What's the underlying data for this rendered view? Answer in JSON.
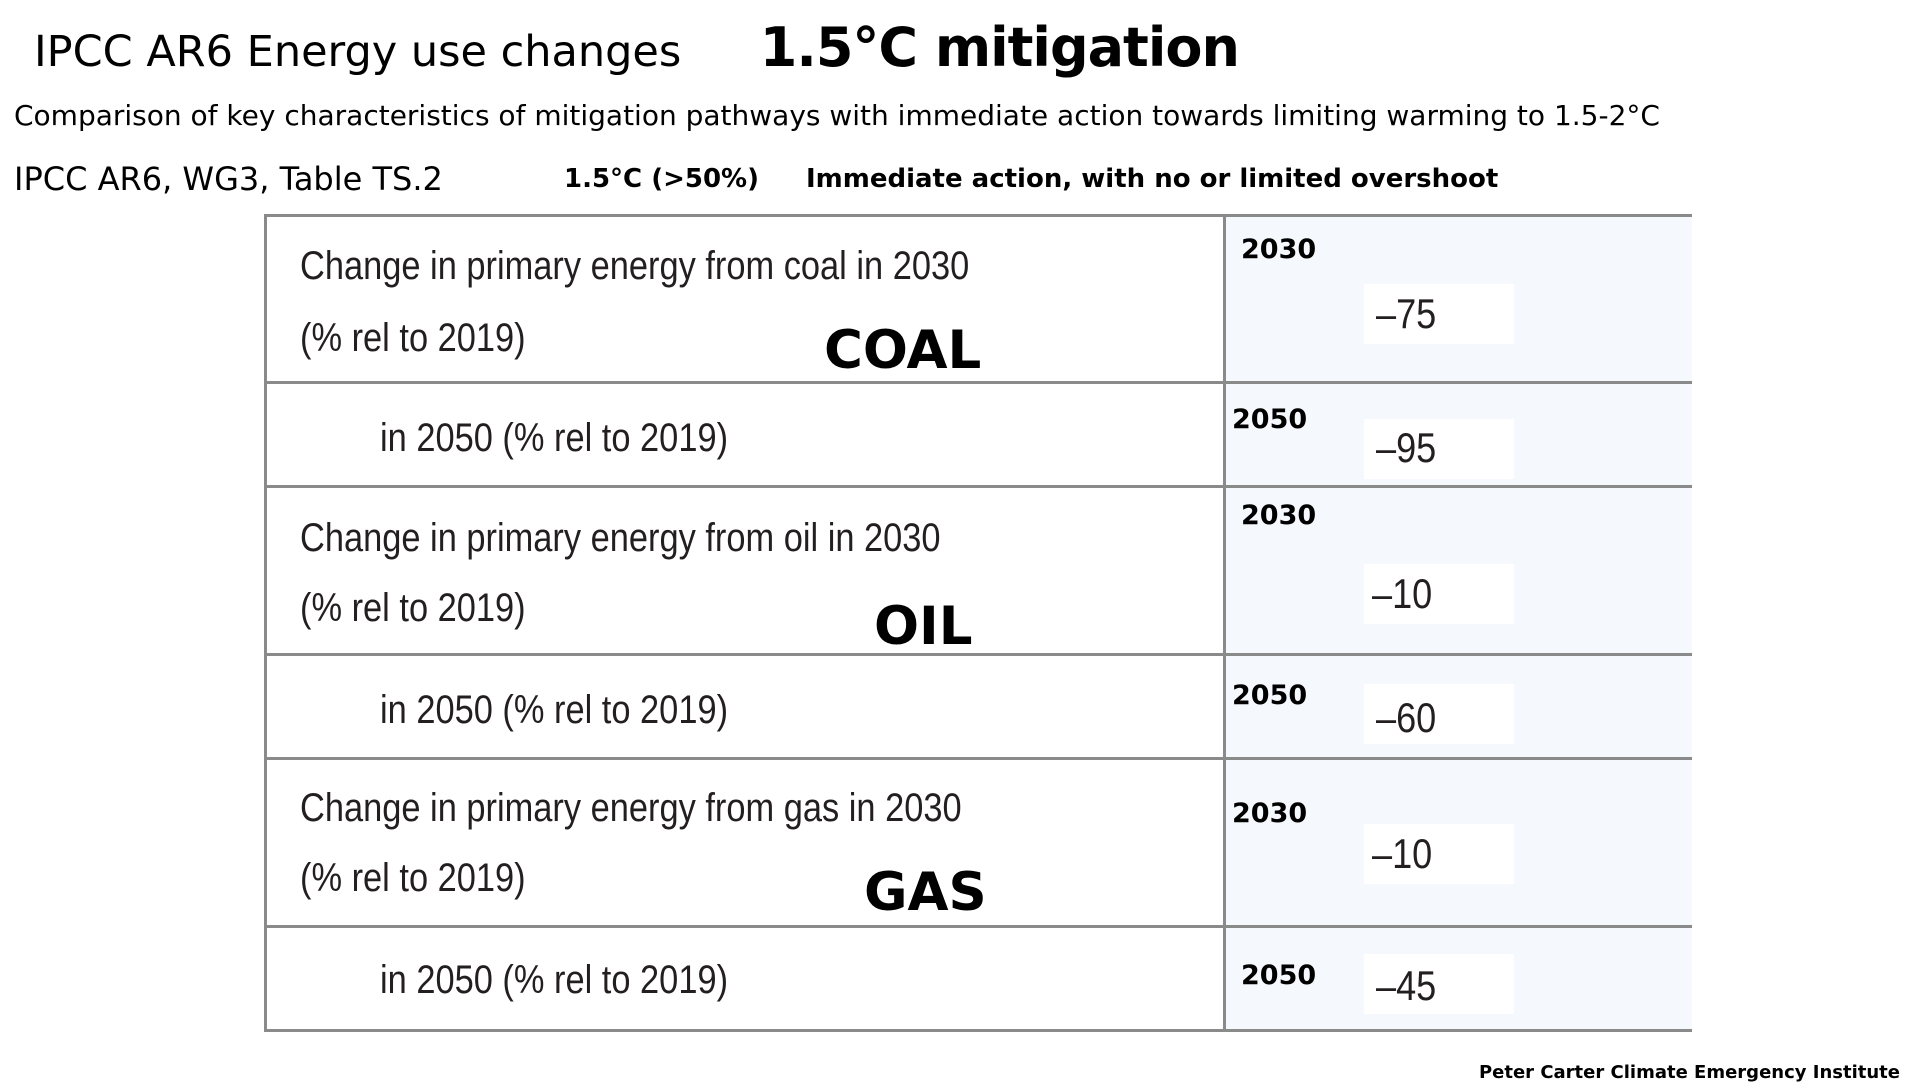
{
  "header": {
    "title": "IPCC AR6 Energy use changes",
    "title_bold": "1.5°C mitigation",
    "subtitle": "Comparison of key characteristics of mitigation pathways with immediate action towards limiting warming to 1.5-2°C",
    "source": "IPCC AR6, WG3, Table TS.2",
    "scenario_threshold": "1.5°C (>50%)",
    "scenario_label": "Immediate action, with no or limited overshoot"
  },
  "table": {
    "rows": [
      {
        "line1": "Change in primary energy from coal in 2030",
        "line2": "(% rel to 2019)",
        "year": "2030",
        "value": "–75"
      },
      {
        "line1": "in 2050 (% rel to 2019)",
        "line2": "",
        "year": "2050",
        "value": "–95"
      },
      {
        "line1": "Change in primary energy from oil in 2030",
        "line2": "(% rel to 2019)",
        "year": "2030",
        "value": "–10"
      },
      {
        "line1": "in 2050 (% rel to 2019)",
        "line2": "",
        "year": "2050",
        "value": "–60"
      },
      {
        "line1": "Change in primary energy from gas in 2030",
        "line2": "(% rel to 2019)",
        "year": "2030",
        "value": "–10"
      },
      {
        "line1": "in 2050 (% rel to 2019)",
        "line2": "",
        "year": "2050",
        "value": "–45"
      }
    ],
    "fuel_labels": [
      "COAL",
      "OIL",
      "GAS"
    ]
  },
  "footer": {
    "credit": "Peter Carter Climate Emergency Institute"
  }
}
